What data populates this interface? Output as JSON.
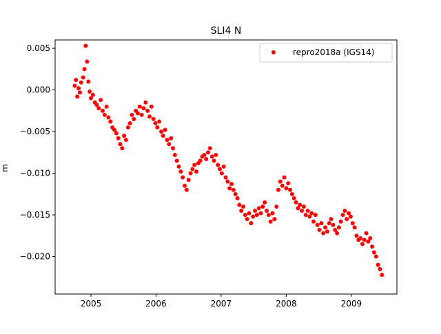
{
  "chart_data": {
    "type": "scatter",
    "title": "SLI4 N",
    "xlabel": "",
    "ylabel": "m",
    "xlim": [
      2004.45,
      2009.7
    ],
    "ylim": [
      -0.0245,
      0.006
    ],
    "x_ticks": [
      2005,
      2006,
      2007,
      2008,
      2009
    ],
    "x_tick_labels": [
      "2005",
      "2006",
      "2007",
      "2008",
      "2009"
    ],
    "y_ticks": [
      0.005,
      0.0,
      -0.005,
      -0.01,
      -0.015,
      -0.02
    ],
    "y_tick_labels": [
      "0.005",
      "0.000",
      "−0.005",
      "−0.010",
      "−0.015",
      "−0.020"
    ],
    "grid": false,
    "legend_position": "top-right",
    "series": [
      {
        "name": "repro2018a (IGS14)",
        "color": "#ff0000",
        "marker": "circle",
        "x": [
          2004.75,
          2004.77,
          2004.79,
          2004.81,
          2004.83,
          2004.85,
          2004.88,
          2004.9,
          2004.92,
          2004.94,
          2004.96,
          2004.98,
          2005.0,
          2005.03,
          2005.06,
          2005.09,
          2005.12,
          2005.15,
          2005.18,
          2005.21,
          2005.24,
          2005.27,
          2005.3,
          2005.33,
          2005.36,
          2005.39,
          2005.42,
          2005.45,
          2005.48,
          2005.51,
          2005.54,
          2005.57,
          2005.6,
          2005.63,
          2005.66,
          2005.69,
          2005.72,
          2005.75,
          2005.78,
          2005.81,
          2005.84,
          2005.87,
          2005.9,
          2005.93,
          2005.96,
          2005.99,
          2006.02,
          2006.05,
          2006.08,
          2006.11,
          2006.14,
          2006.17,
          2006.2,
          2006.23,
          2006.26,
          2006.29,
          2006.32,
          2006.35,
          2006.38,
          2006.41,
          2006.44,
          2006.47,
          2006.5,
          2006.53,
          2006.56,
          2006.59,
          2006.62,
          2006.65,
          2006.68,
          2006.71,
          2006.74,
          2006.77,
          2006.8,
          2006.83,
          2006.86,
          2006.89,
          2006.92,
          2006.95,
          2006.98,
          2007.01,
          2007.04,
          2007.07,
          2007.1,
          2007.13,
          2007.16,
          2007.19,
          2007.22,
          2007.25,
          2007.28,
          2007.31,
          2007.34,
          2007.37,
          2007.4,
          2007.43,
          2007.46,
          2007.49,
          2007.52,
          2007.55,
          2007.58,
          2007.61,
          2007.64,
          2007.67,
          2007.7,
          2007.73,
          2007.76,
          2007.79,
          2007.82,
          2007.85,
          2007.88,
          2007.91,
          2007.94,
          2007.97,
          2008.0,
          2008.03,
          2008.06,
          2008.09,
          2008.12,
          2008.15,
          2008.18,
          2008.21,
          2008.24,
          2008.27,
          2008.3,
          2008.33,
          2008.36,
          2008.39,
          2008.42,
          2008.45,
          2008.48,
          2008.51,
          2008.54,
          2008.57,
          2008.6,
          2008.63,
          2008.66,
          2008.69,
          2008.72,
          2008.75,
          2008.78,
          2008.81,
          2008.84,
          2008.87,
          2008.9,
          2008.93,
          2008.96,
          2008.99,
          2009.02,
          2009.05,
          2009.08,
          2009.11,
          2009.14,
          2009.17,
          2009.2,
          2009.23,
          2009.26,
          2009.29,
          2009.32,
          2009.35,
          2009.38,
          2009.41,
          2009.44,
          2009.47
        ],
        "y": [
          0.0005,
          0.0012,
          -0.0008,
          0.0002,
          -0.0003,
          0.0009,
          0.0015,
          0.0025,
          0.0053,
          0.0034,
          0.001,
          -0.0002,
          -0.001,
          -0.0006,
          -0.0015,
          -0.0018,
          -0.0022,
          -0.0012,
          -0.0025,
          -0.003,
          -0.002,
          -0.0033,
          -0.0038,
          -0.0045,
          -0.0048,
          -0.0052,
          -0.0058,
          -0.0065,
          -0.007,
          -0.0055,
          -0.006,
          -0.0045,
          -0.004,
          -0.003,
          -0.0035,
          -0.0025,
          -0.0028,
          -0.002,
          -0.003,
          -0.0022,
          -0.0015,
          -0.0025,
          -0.0032,
          -0.002,
          -0.0035,
          -0.004,
          -0.0045,
          -0.0038,
          -0.005,
          -0.0055,
          -0.0048,
          -0.006,
          -0.0065,
          -0.0058,
          -0.007,
          -0.0078,
          -0.0085,
          -0.0092,
          -0.0098,
          -0.0105,
          -0.0115,
          -0.012,
          -0.0108,
          -0.01,
          -0.0095,
          -0.009,
          -0.0098,
          -0.0088,
          -0.0085,
          -0.008,
          -0.0078,
          -0.0083,
          -0.0075,
          -0.007,
          -0.008,
          -0.0085,
          -0.0078,
          -0.009,
          -0.0095,
          -0.01,
          -0.0092,
          -0.0105,
          -0.011,
          -0.0118,
          -0.0113,
          -0.012,
          -0.0125,
          -0.013,
          -0.0138,
          -0.0145,
          -0.014,
          -0.015,
          -0.0155,
          -0.0148,
          -0.016,
          -0.0152,
          -0.0145,
          -0.015,
          -0.0142,
          -0.0148,
          -0.014,
          -0.0135,
          -0.0145,
          -0.015,
          -0.0158,
          -0.0148,
          -0.0155,
          -0.014,
          -0.012,
          -0.011,
          -0.0115,
          -0.0105,
          -0.0118,
          -0.0112,
          -0.012,
          -0.0125,
          -0.013,
          -0.0135,
          -0.0142,
          -0.0138,
          -0.0145,
          -0.014,
          -0.015,
          -0.0145,
          -0.0152,
          -0.0148,
          -0.0158,
          -0.015,
          -0.0162,
          -0.0168,
          -0.016,
          -0.0172,
          -0.0165,
          -0.017,
          -0.016,
          -0.0155,
          -0.0162,
          -0.0168,
          -0.0172,
          -0.0165,
          -0.0158,
          -0.015,
          -0.0145,
          -0.0155,
          -0.0148,
          -0.0152,
          -0.016,
          -0.0165,
          -0.0175,
          -0.018,
          -0.0178,
          -0.0185,
          -0.018,
          -0.0172,
          -0.0182,
          -0.0178,
          -0.0188,
          -0.0195,
          -0.02,
          -0.021,
          -0.0215,
          -0.0222
        ]
      }
    ]
  }
}
